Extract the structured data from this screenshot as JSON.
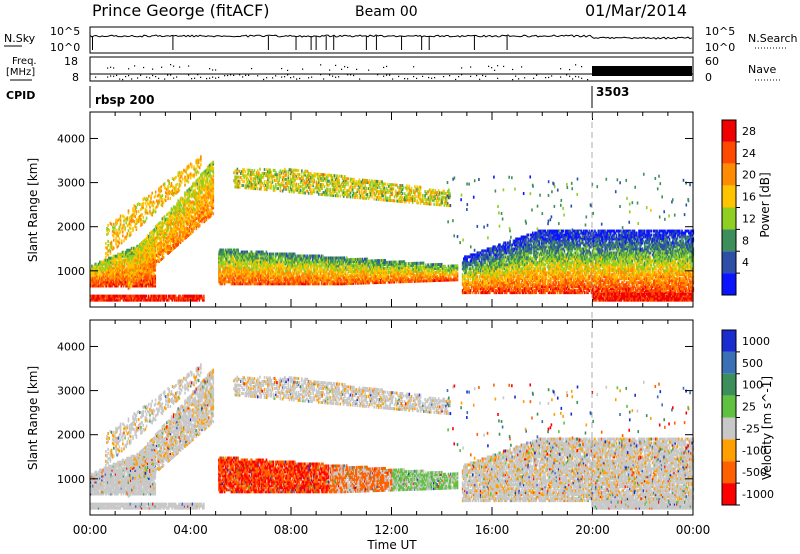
{
  "header": {
    "title": "Prince George (fitACF)",
    "beam": "Beam 00",
    "date": "01/Mar/2014"
  },
  "top_panels": {
    "nsky_label": "N.Sky",
    "nsky_ticks": [
      "10^5",
      "10^0"
    ],
    "nsearch_label": "N.Search",
    "nsearch_ticks": [
      "10^5",
      "10^0"
    ],
    "freq_label": "Freq.",
    "freq_unit": "[MHz]",
    "freq_ticks": [
      "18",
      "8"
    ],
    "nave_label": "Nave",
    "nave_ticks": [
      "60",
      "0"
    ],
    "cpid_label": "CPID",
    "cpid_segments": [
      {
        "name": "rbsp 200",
        "start_hour": 0,
        "end_hour": 20
      },
      {
        "name": "3503",
        "start_hour": 20,
        "end_hour": 24
      }
    ]
  },
  "chart_data": [
    {
      "type": "heatmap",
      "parameter": "Power",
      "xlabel": "",
      "ylabel": "Slant Range [km]",
      "xlim": [
        0,
        24
      ],
      "ylim": [
        180,
        4600
      ],
      "yticks": [
        "4000",
        "3000",
        "2000",
        "1000"
      ],
      "colorbar": {
        "label": "Power [dB]",
        "ticks": [
          "28",
          "24",
          "20",
          "16",
          "12",
          "8",
          "4"
        ],
        "colors": [
          "#f00000",
          "#ff4800",
          "#ff8c00",
          "#ffc400",
          "#8ecf22",
          "#3c8f5a",
          "#2e4fa8",
          "#0a14ff"
        ]
      },
      "features": [
        {
          "name": "early rising echo band",
          "start_hour": 0,
          "end_hour": 4.9,
          "range_start_km": 700,
          "range_end_km": 3500
        },
        {
          "name": "near-range band",
          "start_hour": 0,
          "end_hour": 4.5,
          "range_start_km": 330,
          "range_end_km": 450
        },
        {
          "name": "far-range band",
          "start_hour": 5.7,
          "end_hour": 14.3,
          "range_start_km": 2400,
          "range_end_km": 3300
        },
        {
          "name": "mid-range band",
          "start_hour": 5.1,
          "end_hour": 14.6,
          "range_start_km": 700,
          "range_end_km": 1500
        },
        {
          "name": "evening echoes",
          "start_hour": 14.8,
          "end_hour": 24,
          "range_start_km": 500,
          "range_end_km": 2300
        }
      ]
    },
    {
      "type": "heatmap",
      "parameter": "Velocity",
      "xlabel": "Time UT",
      "ylabel": "Slant Range [km]",
      "xlim": [
        0,
        24
      ],
      "ylim": [
        180,
        4600
      ],
      "xticks": [
        "00:00",
        "04:00",
        "08:00",
        "12:00",
        "16:00",
        "20:00",
        "00:00"
      ],
      "yticks": [
        "4000",
        "3000",
        "2000",
        "1000"
      ],
      "colorbar": {
        "label": "Velocity [m s^-1]",
        "ticks": [
          "1000",
          "500",
          "100",
          "25",
          "-25",
          "-100",
          "-500",
          "-1000"
        ],
        "colors": [
          "#1a2cd0",
          "#3c70b4",
          "#3c8f5a",
          "#60c040",
          "#c8c8c8",
          "#ffa000",
          "#ff6000",
          "#ff0000"
        ]
      }
    }
  ]
}
